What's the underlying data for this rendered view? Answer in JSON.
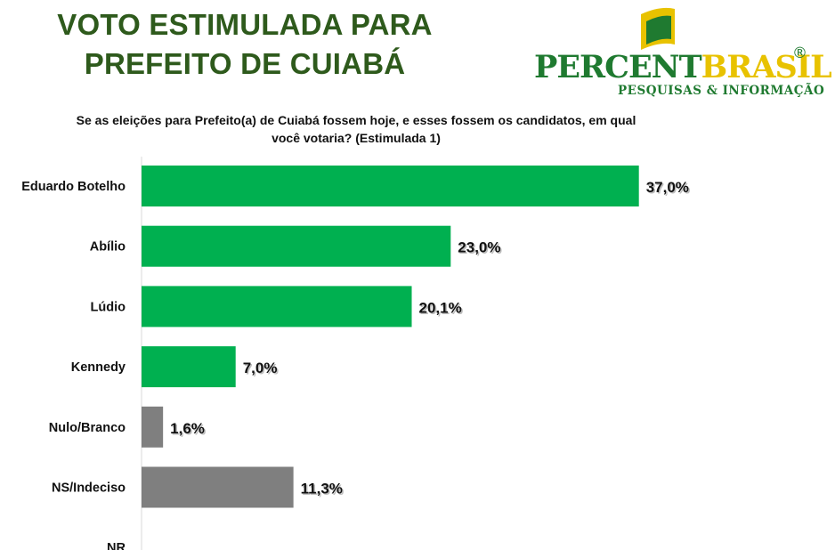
{
  "header": {
    "title_line1": "VOTO ESTIMULADA PARA",
    "title_line2": "PREFEITO DE  CUIABÁ"
  },
  "logo": {
    "word_part1": "PERCENT",
    "word_part2": "BRASIL",
    "registered": "®",
    "subtitle": "PESQUISAS & INFORMAÇÃO"
  },
  "question": {
    "line1": "Se as eleições para Prefeito(a) de Cuiabá fossem hoje, e esses fossem os candidatos, em qual",
    "line2": "você votaria? (Estimulada 1)"
  },
  "colors": {
    "candidate_bar": "#00b050",
    "other_bar": "#7f7f7f",
    "title": "#2e5a1c"
  },
  "chart_data": {
    "type": "bar",
    "orientation": "horizontal",
    "categories": [
      "Eduardo Botelho",
      "Abílio",
      "Lúdio",
      "Kennedy",
      "Nulo/Branco",
      "NS/Indeciso",
      "NR"
    ],
    "values": [
      37.0,
      23.0,
      20.1,
      7.0,
      1.6,
      11.3,
      null
    ],
    "labels": [
      "37,0%",
      "23,0%",
      "20,1%",
      "7,0%",
      "1,6%",
      "11,3%",
      ""
    ],
    "bar_colors": [
      "#00b050",
      "#00b050",
      "#00b050",
      "#00b050",
      "#7f7f7f",
      "#7f7f7f",
      "#7f7f7f"
    ],
    "unit": "%",
    "xlim": [
      0,
      40
    ],
    "grid": false,
    "legend": "none"
  }
}
